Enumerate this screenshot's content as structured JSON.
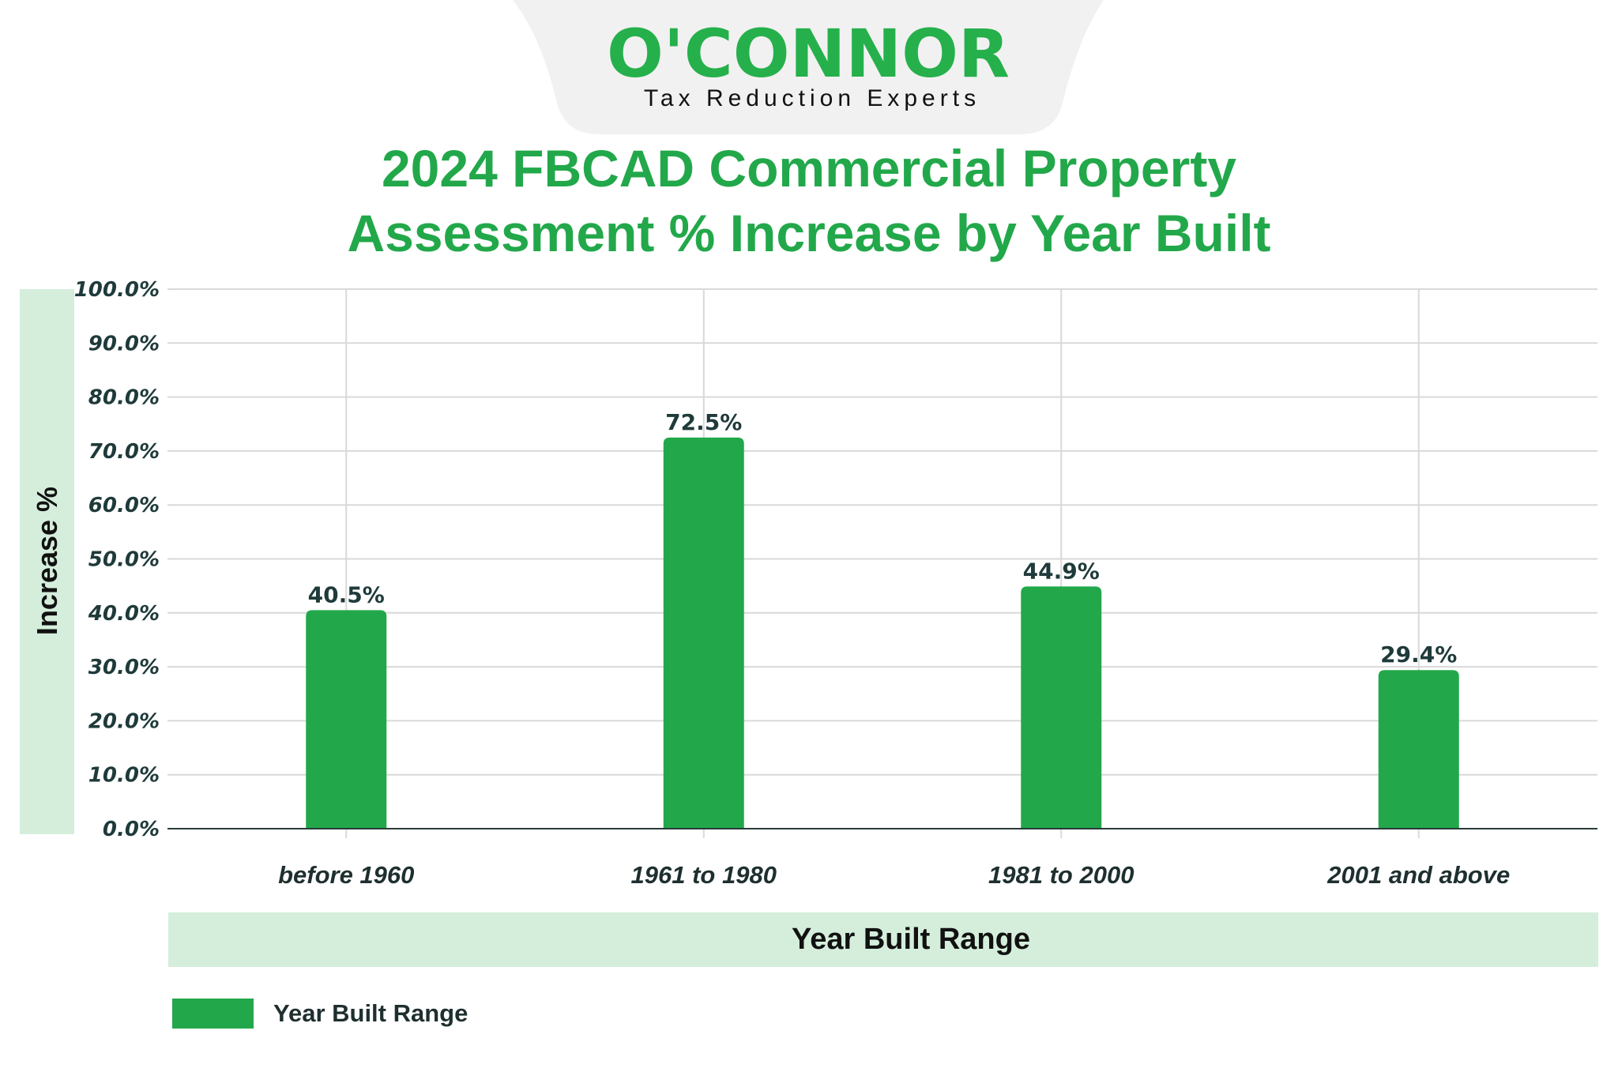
{
  "logo": {
    "brand": "O'CONNOR",
    "tagline": "Tax Reduction Experts"
  },
  "colors": {
    "bar": "#22a84a",
    "band": "#d4eedb",
    "title": "#22a84a",
    "grid": "#d9d9d9",
    "logo_bg": "#f1f1f1"
  },
  "chart_data": {
    "type": "bar",
    "title": [
      "2024 FBCAD Commercial Property",
      "Assessment % Increase by Year Built"
    ],
    "xlabel": "Year Built Range",
    "ylabel": "Increase %",
    "categories": [
      "before 1960",
      "1961 to 1980",
      "1981 to 2000",
      "2001 and above"
    ],
    "series": [
      {
        "name": "Year Built Range",
        "values": [
          40.5,
          72.5,
          44.9,
          29.4
        ]
      }
    ],
    "data_labels": [
      "40.5%",
      "72.5%",
      "44.9%",
      "29.4%"
    ],
    "ylim": [
      0,
      100
    ],
    "yticks": [
      "0.0%",
      "10.0%",
      "20.0%",
      "30.0%",
      "40.0%",
      "50.0%",
      "60.0%",
      "70.0%",
      "80.0%",
      "90.0%",
      "100.0%"
    ],
    "grid": true,
    "legend": {
      "position": "bottom-left",
      "entries": [
        "Year Built Range"
      ]
    }
  }
}
